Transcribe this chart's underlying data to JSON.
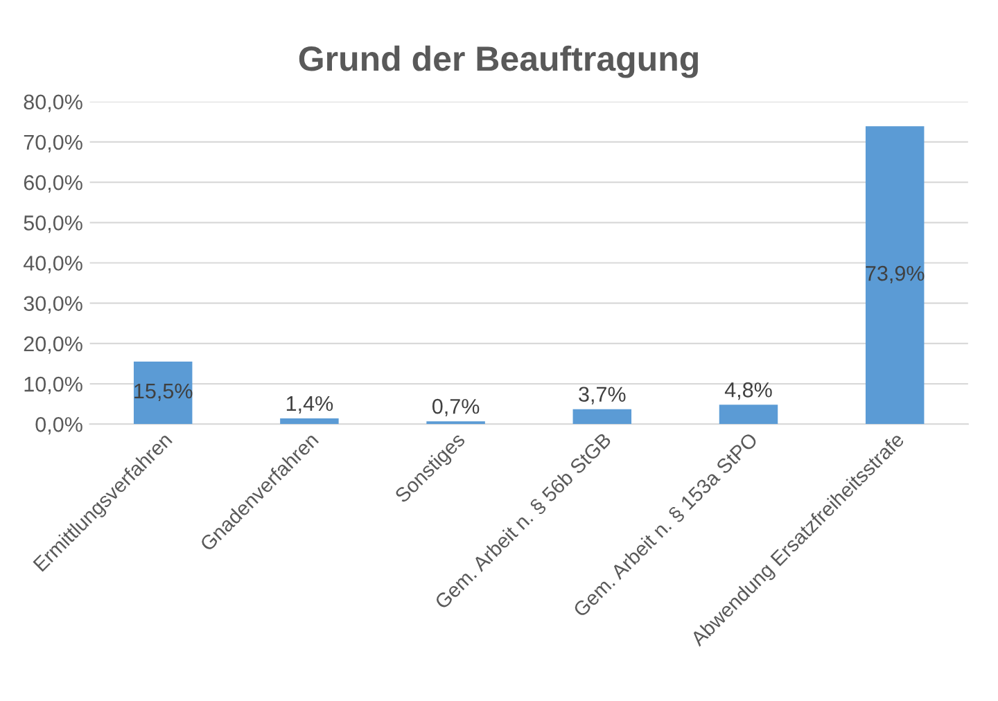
{
  "chart_data": {
    "type": "bar",
    "title": "Grund der Beauftragung",
    "categories": [
      "Ermittlungsverfahren",
      "Gnadenverfahren",
      "Sonstiges",
      "Gem. Arbeit n. § 56b StGB",
      "Gem. Arbeit n. § 153a StPO",
      "Abwendung Ersatzfreiheitsstrafe"
    ],
    "values": [
      15.5,
      1.4,
      0.7,
      3.7,
      4.8,
      73.9
    ],
    "value_labels": [
      "15,5%",
      "1,4%",
      "0,7%",
      "3,7%",
      "4,8%",
      "73,9%"
    ],
    "color": "#5b9bd5",
    "ylim": [
      0,
      80
    ],
    "yticks": [
      {
        "value": 0,
        "label": "0,0%"
      },
      {
        "value": 10,
        "label": "10,0%"
      },
      {
        "value": 20,
        "label": "20,0%"
      },
      {
        "value": 30,
        "label": "30,0%"
      },
      {
        "value": 40,
        "label": "40,0%"
      },
      {
        "value": 50,
        "label": "50,0%"
      },
      {
        "value": 60,
        "label": "60,0%"
      },
      {
        "value": 70,
        "label": "70,0%"
      },
      {
        "value": 80,
        "label": "80,0%"
      }
    ],
    "grid": "y",
    "legend": false
  }
}
